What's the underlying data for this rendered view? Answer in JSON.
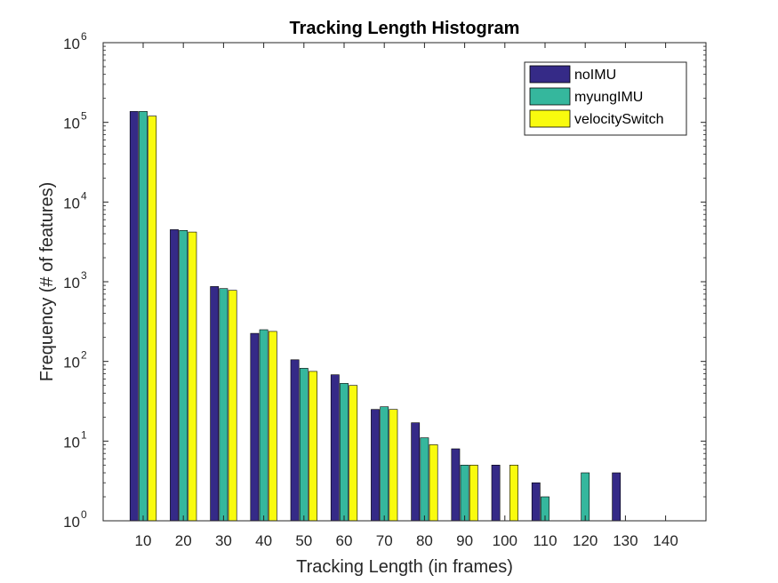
{
  "chart_data": {
    "type": "bar",
    "title": "Tracking Length Histogram",
    "xlabel": "Tracking Length (in frames)",
    "ylabel": "Frequency (# of features)",
    "yscale": "log",
    "ylim": [
      1,
      1000000
    ],
    "y_ticks": [
      {
        "base": "10",
        "exp": "0",
        "value": 1
      },
      {
        "base": "10",
        "exp": "1",
        "value": 10
      },
      {
        "base": "10",
        "exp": "2",
        "value": 100
      },
      {
        "base": "10",
        "exp": "3",
        "value": 1000
      },
      {
        "base": "10",
        "exp": "4",
        "value": 10000
      },
      {
        "base": "10",
        "exp": "5",
        "value": 100000
      },
      {
        "base": "10",
        "exp": "6",
        "value": 1000000
      }
    ],
    "categories": [
      "10",
      "20",
      "30",
      "40",
      "50",
      "60",
      "70",
      "80",
      "90",
      "100",
      "110",
      "120",
      "130",
      "140"
    ],
    "series": [
      {
        "name": "noIMU",
        "color": "#352A87",
        "values": [
          137000,
          4500,
          870,
          225,
          105,
          68,
          25,
          17,
          8,
          5,
          3,
          1,
          4,
          1
        ]
      },
      {
        "name": "myungIMU",
        "color": "#35B79D",
        "values": [
          137000,
          4400,
          820,
          250,
          82,
          53,
          27,
          11,
          5,
          1,
          2,
          4,
          1,
          1
        ]
      },
      {
        "name": "velocitySwitch",
        "color": "#F9FB0E",
        "values": [
          120000,
          4200,
          780,
          238,
          75,
          50,
          25,
          9,
          5,
          5,
          1,
          1,
          1,
          1
        ]
      }
    ],
    "legend_position": "top-right",
    "grid": false
  }
}
